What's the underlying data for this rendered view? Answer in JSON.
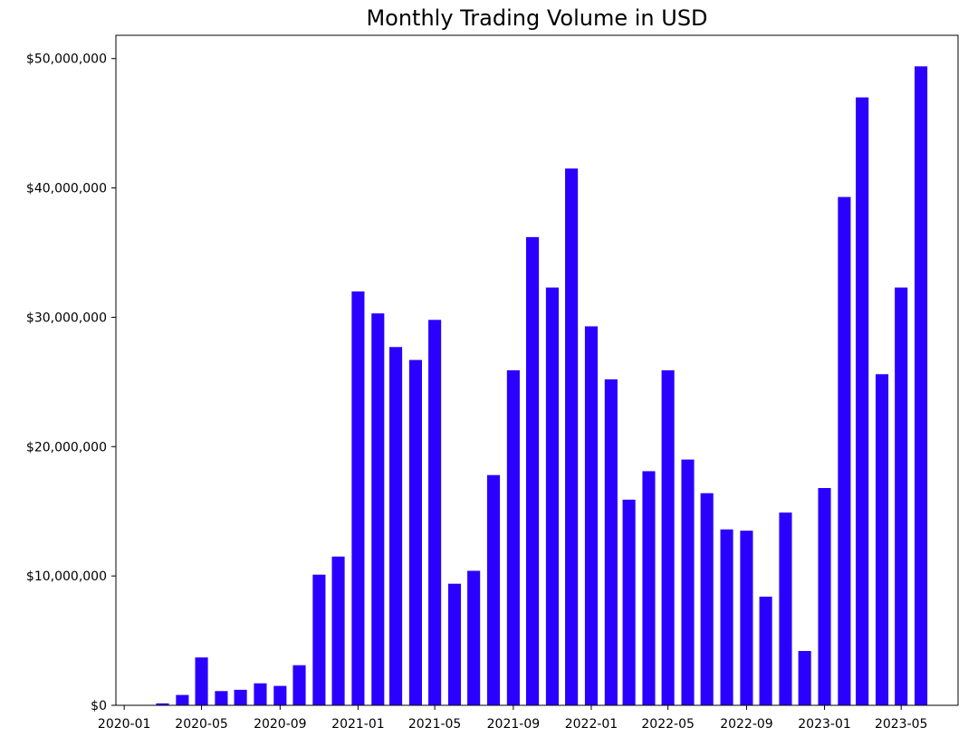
{
  "chart_data": {
    "type": "bar",
    "title": "Monthly Trading Volume in USD",
    "xlabel": "",
    "ylabel": "",
    "x_ticks": [
      "2020-01",
      "2020-05",
      "2020-09",
      "2021-01",
      "2021-05",
      "2021-09",
      "2022-01",
      "2022-05",
      "2022-09",
      "2023-01",
      "2023-05"
    ],
    "y_ticks": [
      "$0",
      "$10,000,000",
      "$20,000,000",
      "$30,000,000",
      "$40,000,000",
      "$50,000,000"
    ],
    "ylim": [
      0,
      51800000
    ],
    "xlim": [
      "2019-12-19",
      "2023-07-29"
    ],
    "bar_color": "#2a00ff",
    "grid": false,
    "x": [
      "2020-03-01",
      "2020-04-01",
      "2020-05-01",
      "2020-06-01",
      "2020-07-01",
      "2020-08-01",
      "2020-09-01",
      "2020-10-01",
      "2020-11-01",
      "2020-12-01",
      "2021-01-01",
      "2021-02-01",
      "2021-03-01",
      "2021-04-01",
      "2021-05-01",
      "2021-06-01",
      "2021-07-01",
      "2021-08-01",
      "2021-09-01",
      "2021-10-01",
      "2021-11-01",
      "2021-12-01",
      "2022-01-01",
      "2022-02-01",
      "2022-03-01",
      "2022-04-01",
      "2022-05-01",
      "2022-06-01",
      "2022-07-01",
      "2022-08-01",
      "2022-09-01",
      "2022-10-01",
      "2022-11-01",
      "2022-12-01",
      "2023-01-01",
      "2023-02-01",
      "2023-03-01",
      "2023-04-01",
      "2023-05-01",
      "2023-06-01"
    ],
    "values": [
      150000,
      800000,
      3700000,
      1100000,
      1200000,
      1700000,
      1500000,
      3100000,
      10100000,
      11500000,
      32000000,
      30300000,
      27700000,
      26700000,
      29800000,
      9400000,
      10400000,
      17800000,
      25900000,
      36200000,
      32300000,
      41500000,
      29300000,
      25200000,
      15900000,
      18100000,
      25900000,
      19000000,
      16400000,
      13600000,
      13500000,
      8400000,
      14900000,
      4200000,
      16800000,
      39300000,
      47000000,
      25600000,
      32300000,
      49400000
    ]
  }
}
